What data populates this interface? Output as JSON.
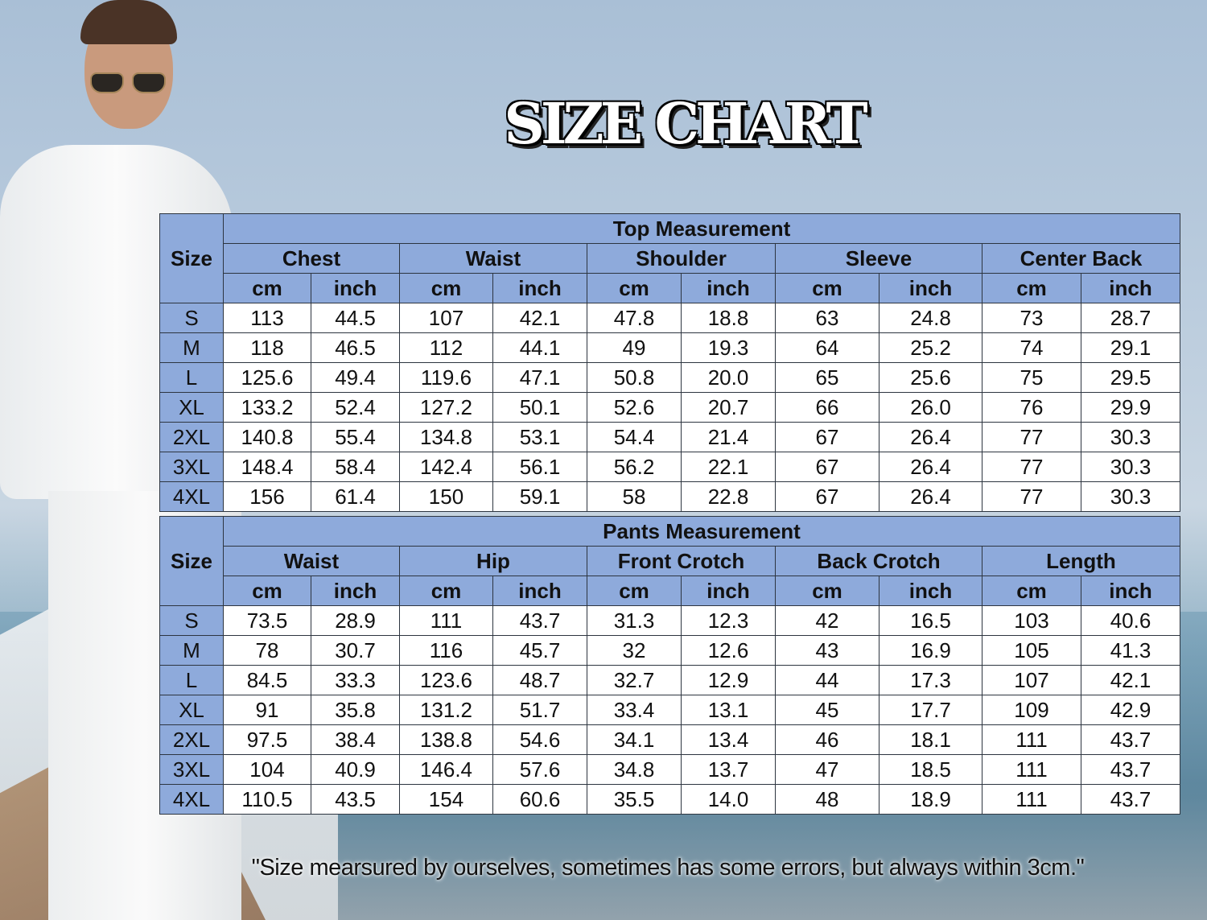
{
  "title": "SIZE CHART",
  "colors": {
    "header_bg": "#8eaadb",
    "cell_bg": "#ffffff",
    "border": "#2d3540"
  },
  "unit_labels": [
    "cm",
    "inch"
  ],
  "size_label": "Size",
  "tables": [
    {
      "id": "top",
      "title": "Top Measurement",
      "groups": [
        "Chest",
        "Waist",
        "Shoulder",
        "Sleeve",
        "Center Back"
      ],
      "rows": [
        {
          "size": "S",
          "values": [
            "113",
            "44.5",
            "107",
            "42.1",
            "47.8",
            "18.8",
            "63",
            "24.8",
            "73",
            "28.7"
          ]
        },
        {
          "size": "M",
          "values": [
            "118",
            "46.5",
            "112",
            "44.1",
            "49",
            "19.3",
            "64",
            "25.2",
            "74",
            "29.1"
          ]
        },
        {
          "size": "L",
          "values": [
            "125.6",
            "49.4",
            "119.6",
            "47.1",
            "50.8",
            "20.0",
            "65",
            "25.6",
            "75",
            "29.5"
          ]
        },
        {
          "size": "XL",
          "values": [
            "133.2",
            "52.4",
            "127.2",
            "50.1",
            "52.6",
            "20.7",
            "66",
            "26.0",
            "76",
            "29.9"
          ]
        },
        {
          "size": "2XL",
          "values": [
            "140.8",
            "55.4",
            "134.8",
            "53.1",
            "54.4",
            "21.4",
            "67",
            "26.4",
            "77",
            "30.3"
          ]
        },
        {
          "size": "3XL",
          "values": [
            "148.4",
            "58.4",
            "142.4",
            "56.1",
            "56.2",
            "22.1",
            "67",
            "26.4",
            "77",
            "30.3"
          ]
        },
        {
          "size": "4XL",
          "values": [
            "156",
            "61.4",
            "150",
            "59.1",
            "58",
            "22.8",
            "67",
            "26.4",
            "77",
            "30.3"
          ]
        }
      ]
    },
    {
      "id": "pants",
      "title": "Pants Measurement",
      "groups": [
        "Waist",
        "Hip",
        "Front Crotch",
        "Back Crotch",
        "Length"
      ],
      "rows": [
        {
          "size": "S",
          "values": [
            "73.5",
            "28.9",
            "111",
            "43.7",
            "31.3",
            "12.3",
            "42",
            "16.5",
            "103",
            "40.6"
          ]
        },
        {
          "size": "M",
          "values": [
            "78",
            "30.7",
            "116",
            "45.7",
            "32",
            "12.6",
            "43",
            "16.9",
            "105",
            "41.3"
          ]
        },
        {
          "size": "L",
          "values": [
            "84.5",
            "33.3",
            "123.6",
            "48.7",
            "32.7",
            "12.9",
            "44",
            "17.3",
            "107",
            "42.1"
          ]
        },
        {
          "size": "XL",
          "values": [
            "91",
            "35.8",
            "131.2",
            "51.7",
            "33.4",
            "13.1",
            "45",
            "17.7",
            "109",
            "42.9"
          ]
        },
        {
          "size": "2XL",
          "values": [
            "97.5",
            "38.4",
            "138.8",
            "54.6",
            "34.1",
            "13.4",
            "46",
            "18.1",
            "111",
            "43.7"
          ]
        },
        {
          "size": "3XL",
          "values": [
            "104",
            "40.9",
            "146.4",
            "57.6",
            "34.8",
            "13.7",
            "47",
            "18.5",
            "111",
            "43.7"
          ]
        },
        {
          "size": "4XL",
          "values": [
            "110.5",
            "43.5",
            "154",
            "60.6",
            "35.5",
            "14.0",
            "48",
            "18.9",
            "111",
            "43.7"
          ]
        }
      ]
    }
  ],
  "footnote": "\"Size mearsured by ourselves, sometimes has some errors, but always within 3cm.\""
}
